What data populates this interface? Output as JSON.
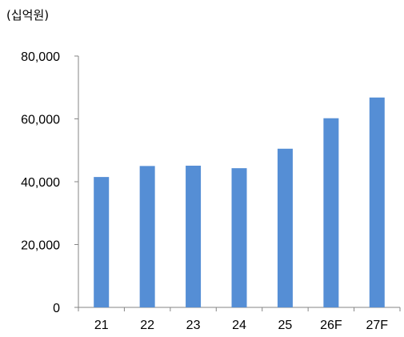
{
  "chart_data": {
    "type": "bar",
    "unit_label": "(십억원)",
    "categories": [
      "21",
      "22",
      "23",
      "24",
      "25",
      "26F",
      "27F"
    ],
    "values": [
      41500,
      45000,
      45100,
      44300,
      50500,
      60200,
      66800
    ],
    "y_ticks": [
      "0",
      "20,000",
      "40,000",
      "60,000",
      "80,000"
    ],
    "ylim": [
      0,
      80000
    ],
    "y_step": 20000,
    "grid": false,
    "legend": "none",
    "bar_color": "#558ED5",
    "axis_color": "#868686"
  }
}
